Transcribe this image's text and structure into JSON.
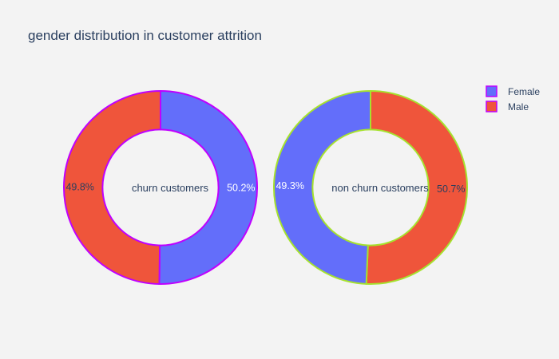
{
  "chart_data": {
    "type": "pie",
    "title": "gender distribution in customer attrition",
    "legend": {
      "placement": "top-right",
      "entries": [
        {
          "label": "Female",
          "color": "#636efa"
        },
        {
          "label": "Male",
          "color": "#ef553b"
        }
      ]
    },
    "charts": [
      {
        "center_label": "churn customers",
        "hole": 0.6,
        "outline_color": "#bf00ff",
        "slices": [
          {
            "label": "Female",
            "value": 50.2,
            "text": "50.2%",
            "color": "#636efa",
            "text_color": "#ffffff"
          },
          {
            "label": "Male",
            "value": 49.8,
            "text": "49.8%",
            "color": "#ef553b",
            "text_color": "#2a3f5f"
          }
        ]
      },
      {
        "center_label": "non churn customers",
        "hole": 0.6,
        "outline_color": "#a6e22e",
        "slices": [
          {
            "label": "Male",
            "value": 50.7,
            "text": "50.7%",
            "color": "#ef553b",
            "text_color": "#2a3f5f"
          },
          {
            "label": "Female",
            "value": 49.3,
            "text": "49.3%",
            "color": "#636efa",
            "text_color": "#ffffff"
          }
        ]
      }
    ]
  }
}
